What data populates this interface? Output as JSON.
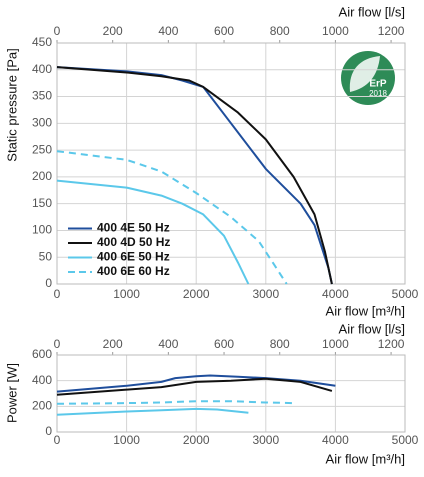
{
  "chart_data": [
    {
      "type": "line",
      "x_label": "Air flow [m³/h]",
      "x2_label": "Air flow [l/s]",
      "y_label": "Static pressure [Pa]",
      "xlim": [
        0,
        5000
      ],
      "xticks": [
        0,
        1000,
        2000,
        3000,
        4000,
        5000
      ],
      "x2lim": [
        0,
        1250
      ],
      "x2ticks": [
        0,
        200,
        400,
        600,
        800,
        1000,
        1200
      ],
      "ylim": [
        0,
        450
      ],
      "yticks": [
        0,
        50,
        100,
        150,
        200,
        250,
        300,
        350,
        400,
        450
      ],
      "grid": true,
      "legend": "lower left",
      "series": [
        {
          "name": "400 4E 50 Hz",
          "color": "#1f4e9c",
          "dashed": false,
          "x": [
            0,
            1000,
            1500,
            1800,
            2100,
            2500,
            3000,
            3500,
            3700,
            3900,
            3950
          ],
          "values": [
            405,
            397,
            390,
            380,
            368,
            300,
            215,
            150,
            110,
            30,
            0
          ]
        },
        {
          "name": "400 4D 50 Hz",
          "color": "#111111",
          "dashed": false,
          "x": [
            0,
            1000,
            1500,
            1900,
            2100,
            2600,
            3000,
            3400,
            3700,
            3850,
            3950
          ],
          "values": [
            405,
            395,
            388,
            380,
            368,
            320,
            270,
            200,
            130,
            60,
            0
          ]
        },
        {
          "name": "400 6E 50 Hz",
          "color": "#5bc8ea",
          "dashed": false,
          "x": [
            0,
            1000,
            1500,
            1800,
            2100,
            2400,
            2600,
            2750
          ],
          "values": [
            193,
            180,
            165,
            150,
            130,
            90,
            40,
            0
          ]
        },
        {
          "name": "400 6E 60 Hz",
          "color": "#5bc8ea",
          "dashed": true,
          "x": [
            0,
            1000,
            1500,
            2000,
            2500,
            2900,
            3100,
            3300
          ],
          "values": [
            248,
            232,
            210,
            170,
            125,
            80,
            40,
            0
          ]
        }
      ]
    },
    {
      "type": "line",
      "x_label": "Air flow [m³/h]",
      "x2_label": "Air flow [l/s]",
      "y_label": "Power [W]",
      "xlim": [
        0,
        5000
      ],
      "xticks": [
        0,
        1000,
        2000,
        3000,
        4000,
        5000
      ],
      "x2lim": [
        0,
        1250
      ],
      "x2ticks": [
        0,
        200,
        400,
        600,
        800,
        1000,
        1200
      ],
      "ylim": [
        0,
        600
      ],
      "yticks": [
        0,
        200,
        400,
        600
      ],
      "grid": true,
      "series": [
        {
          "color": "#1f4e9c",
          "dashed": false,
          "x": [
            0,
            1000,
            1500,
            1700,
            2000,
            2200,
            2600,
            3000,
            3500,
            4000
          ],
          "values": [
            315,
            360,
            390,
            420,
            435,
            440,
            430,
            420,
            400,
            360
          ]
        },
        {
          "color": "#111111",
          "dashed": false,
          "x": [
            0,
            1000,
            1500,
            2000,
            2500,
            3000,
            3500,
            3950
          ],
          "values": [
            290,
            330,
            350,
            390,
            400,
            415,
            390,
            320
          ]
        },
        {
          "color": "#5bc8ea",
          "dashed": false,
          "x": [
            0,
            1000,
            1500,
            2000,
            2300,
            2750
          ],
          "values": [
            135,
            160,
            170,
            180,
            175,
            150
          ]
        },
        {
          "color": "#5bc8ea",
          "dashed": true,
          "x": [
            0,
            1000,
            1500,
            2000,
            2500,
            3000,
            3400
          ],
          "values": [
            220,
            225,
            230,
            240,
            240,
            230,
            225
          ]
        }
      ]
    }
  ],
  "badge": {
    "label": "ErP",
    "year": "2018"
  }
}
